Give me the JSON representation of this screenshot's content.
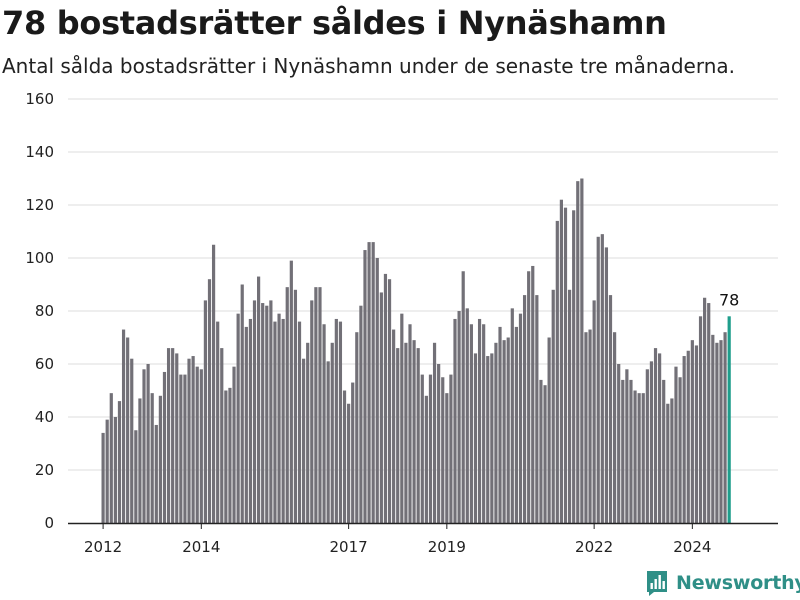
{
  "header": {
    "title": "78 bostadsrätter såldes i Nynäshamn",
    "subtitle": "Antal sålda bostadsrätter i Nynäshamn under de senaste tre månaderna."
  },
  "brand": {
    "name": "Newsworthy",
    "icon": "newsworthy-logo-icon",
    "color": "#2f8f87"
  },
  "chart_data": {
    "type": "bar",
    "title": "78 bostadsrätter såldes i Nynäshamn",
    "subtitle": "Antal sålda bostadsrätter i Nynäshamn under de senaste tre månaderna.",
    "xlabel": "",
    "ylabel": "",
    "ylim": [
      0,
      160
    ],
    "yticks": [
      0,
      20,
      40,
      60,
      80,
      100,
      120,
      140,
      160
    ],
    "xticks": [
      "2012",
      "2014",
      "2017",
      "2019",
      "2022",
      "2024"
    ],
    "grid": true,
    "bar_color": "#727077",
    "highlight_color": "#1f9e8c",
    "highlight_label": "78",
    "values": [
      34,
      39,
      49,
      40,
      46,
      73,
      70,
      62,
      35,
      47,
      58,
      60,
      49,
      37,
      48,
      57,
      66,
      66,
      64,
      56,
      56,
      62,
      63,
      59,
      58,
      84,
      92,
      105,
      76,
      66,
      50,
      51,
      59,
      79,
      90,
      74,
      77,
      84,
      93,
      83,
      82,
      84,
      76,
      79,
      77,
      89,
      99,
      88,
      76,
      62,
      68,
      84,
      89,
      89,
      75,
      61,
      68,
      77,
      76,
      50,
      45,
      53,
      72,
      82,
      103,
      106,
      106,
      100,
      87,
      94,
      92,
      73,
      66,
      79,
      68,
      75,
      69,
      66,
      56,
      48,
      56,
      68,
      60,
      55,
      49,
      56,
      77,
      80,
      95,
      81,
      75,
      64,
      77,
      75,
      63,
      64,
      68,
      74,
      69,
      70,
      81,
      74,
      79,
      86,
      95,
      97,
      86,
      54,
      52,
      70,
      88,
      114,
      122,
      119,
      88,
      118,
      129,
      130,
      72,
      73,
      84,
      108,
      109,
      104,
      86,
      72,
      60,
      54,
      58,
      54,
      50,
      49,
      49,
      58,
      61,
      66,
      64,
      54,
      45,
      47,
      59,
      55,
      63,
      65,
      69,
      67,
      78,
      85,
      83,
      71,
      68,
      69,
      72,
      78
    ]
  }
}
